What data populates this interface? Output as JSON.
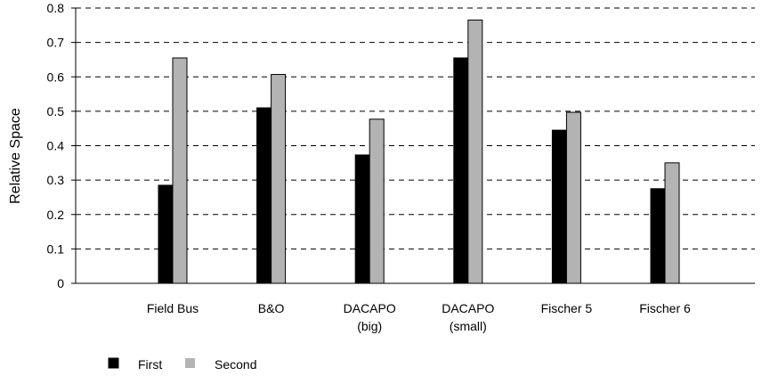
{
  "chart_data": {
    "type": "bar",
    "ylabel": "Relative Space",
    "ylim": [
      0,
      0.8
    ],
    "yticks": [
      "0",
      "0.1",
      "0.2",
      "0.3",
      "0.4",
      "0.5",
      "0.6",
      "0.7",
      "0.8"
    ],
    "grid": "horizontal dashed",
    "legend_position": "bottom-left",
    "categories": [
      [
        "Field Bus"
      ],
      [
        "B&O"
      ],
      [
        "DACAPO",
        "(big)"
      ],
      [
        "DACAPO",
        "(small)"
      ],
      [
        "Fischer 5"
      ],
      [
        "Fischer 6"
      ]
    ],
    "series": [
      {
        "name": "First",
        "color": "#000000",
        "values": [
          0.285,
          0.51,
          0.373,
          0.655,
          0.445,
          0.275
        ]
      },
      {
        "name": "Second",
        "color": "#b3b3b3",
        "values": [
          0.655,
          0.607,
          0.477,
          0.765,
          0.497,
          0.35
        ]
      }
    ]
  }
}
